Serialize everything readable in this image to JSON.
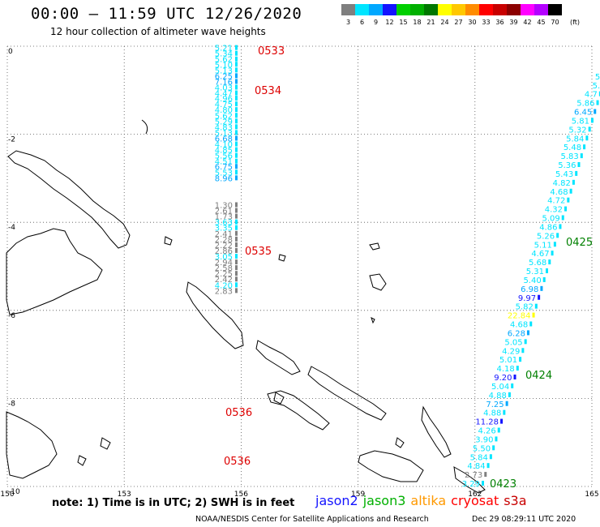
{
  "header": {
    "title": "00:00 – 11:59 UTC 12/26/2020",
    "subtitle": "12 hour collection of altimeter wave heights"
  },
  "color_scale": {
    "unit": "(ft)",
    "bins": [
      {
        "label": "3",
        "color": "#7f7f7f"
      },
      {
        "label": "6",
        "color": "#00e5ff"
      },
      {
        "label": "9",
        "color": "#00a8ff"
      },
      {
        "label": "12",
        "color": "#1414ff"
      },
      {
        "label": "15",
        "color": "#00d000"
      },
      {
        "label": "18",
        "color": "#00b000"
      },
      {
        "label": "21",
        "color": "#007800"
      },
      {
        "label": "24",
        "color": "#ffff00"
      },
      {
        "label": "27",
        "color": "#ffc800"
      },
      {
        "label": "30",
        "color": "#ff8c00"
      },
      {
        "label": "33",
        "color": "#ff0000"
      },
      {
        "label": "36",
        "color": "#c80000"
      },
      {
        "label": "39",
        "color": "#8c0000"
      },
      {
        "label": "42",
        "color": "#ff00ff"
      },
      {
        "label": "45",
        "color": "#b400ff"
      },
      {
        "label": "70",
        "color": "#000000"
      }
    ]
  },
  "map": {
    "lon_ticks": [
      "150",
      "153",
      "156",
      "159",
      "162",
      "165"
    ],
    "lat_ticks": [
      "0",
      "-2",
      "-4",
      "-6",
      "-8",
      "-10"
    ],
    "lon_range": [
      150,
      165
    ],
    "lat_range": [
      0,
      -10
    ]
  },
  "tracks": [
    {
      "satellite": "jason2",
      "points": [
        {
          "lon": 155.7,
          "lat": -0.03,
          "v": "5.21",
          "c": "#00e5ff"
        },
        {
          "lon": 155.7,
          "lat": -0.16,
          "v": "5.34",
          "c": "#00e5ff"
        },
        {
          "lon": 155.7,
          "lat": -0.29,
          "v": "5.62",
          "c": "#00e5ff"
        },
        {
          "lon": 155.7,
          "lat": -0.41,
          "v": "5.10",
          "c": "#00e5ff"
        },
        {
          "lon": 155.7,
          "lat": -0.54,
          "v": "5.13",
          "c": "#00e5ff"
        },
        {
          "lon": 155.7,
          "lat": -0.67,
          "v": "6.25",
          "c": "#00a8ff"
        },
        {
          "lon": 155.7,
          "lat": -0.8,
          "v": "7.16",
          "c": "#00a8ff"
        },
        {
          "lon": 155.7,
          "lat": -0.93,
          "v": "4.03",
          "c": "#00e5ff"
        },
        {
          "lon": 155.7,
          "lat": -1.06,
          "v": "4.47",
          "c": "#00e5ff"
        },
        {
          "lon": 155.7,
          "lat": -1.18,
          "v": "4.96",
          "c": "#00e5ff"
        },
        {
          "lon": 155.7,
          "lat": -1.31,
          "v": "4.75",
          "c": "#00e5ff"
        },
        {
          "lon": 155.7,
          "lat": -1.44,
          "v": "4.80",
          "c": "#00e5ff"
        },
        {
          "lon": 155.7,
          "lat": -1.57,
          "v": "5.62",
          "c": "#00e5ff"
        },
        {
          "lon": 155.7,
          "lat": -1.7,
          "v": "5.29",
          "c": "#00e5ff"
        },
        {
          "lon": 155.7,
          "lat": -1.83,
          "v": "4.83",
          "c": "#00e5ff"
        },
        {
          "lon": 155.7,
          "lat": -1.96,
          "v": "5.13",
          "c": "#00e5ff"
        },
        {
          "lon": 155.7,
          "lat": -2.09,
          "v": "6.68",
          "c": "#00a8ff"
        },
        {
          "lon": 155.7,
          "lat": -2.22,
          "v": "4.10",
          "c": "#00e5ff"
        },
        {
          "lon": 155.7,
          "lat": -2.35,
          "v": "4.85",
          "c": "#00e5ff"
        },
        {
          "lon": 155.7,
          "lat": -2.48,
          "v": "5.56",
          "c": "#00e5ff"
        },
        {
          "lon": 155.7,
          "lat": -2.61,
          "v": "4.51",
          "c": "#00e5ff"
        },
        {
          "lon": 155.7,
          "lat": -2.73,
          "v": "6.75",
          "c": "#00a8ff"
        },
        {
          "lon": 155.7,
          "lat": -2.86,
          "v": "5.53",
          "c": "#00e5ff"
        },
        {
          "lon": 155.7,
          "lat": -2.99,
          "v": "8.96",
          "c": "#00a8ff"
        }
      ]
    },
    {
      "satellite": "jason3",
      "points": [
        {
          "lon": 155.7,
          "lat": -3.6,
          "v": "1.30",
          "c": "#7f7f7f"
        },
        {
          "lon": 155.7,
          "lat": -3.73,
          "v": "2.61",
          "c": "#7f7f7f"
        },
        {
          "lon": 155.7,
          "lat": -3.86,
          "v": "1.73",
          "c": "#7f7f7f"
        },
        {
          "lon": 155.7,
          "lat": -3.99,
          "v": "3.63",
          "c": "#00e5ff"
        },
        {
          "lon": 155.7,
          "lat": -4.12,
          "v": "3.35",
          "c": "#00e5ff"
        },
        {
          "lon": 155.7,
          "lat": -4.25,
          "v": "2.41",
          "c": "#7f7f7f"
        },
        {
          "lon": 155.7,
          "lat": -4.38,
          "v": "2.28",
          "c": "#7f7f7f"
        },
        {
          "lon": 155.7,
          "lat": -4.51,
          "v": "2.22",
          "c": "#7f7f7f"
        },
        {
          "lon": 155.7,
          "lat": -4.64,
          "v": "2.86",
          "c": "#7f7f7f"
        },
        {
          "lon": 155.7,
          "lat": -4.77,
          "v": "3.05",
          "c": "#00e5ff"
        },
        {
          "lon": 155.7,
          "lat": -4.9,
          "v": "2.94",
          "c": "#7f7f7f"
        },
        {
          "lon": 155.7,
          "lat": -5.03,
          "v": "2.58",
          "c": "#7f7f7f"
        },
        {
          "lon": 155.7,
          "lat": -5.16,
          "v": "2.25",
          "c": "#7f7f7f"
        },
        {
          "lon": 155.7,
          "lat": -5.29,
          "v": "2.42",
          "c": "#7f7f7f"
        },
        {
          "lon": 155.7,
          "lat": -5.42,
          "v": "4.20",
          "c": "#00e5ff"
        },
        {
          "lon": 155.7,
          "lat": -5.55,
          "v": "2.83",
          "c": "#7f7f7f"
        }
      ]
    }
  ],
  "diag_track": [
    {
      "v": "5.",
      "c": "#00e5ff"
    },
    {
      "v": "6",
      "c": "#00a8ff"
    },
    {
      "v": "5.",
      "c": "#00e5ff"
    },
    {
      "v": "5.",
      "c": "#00e5ff"
    },
    {
      "v": "4.7",
      "c": "#00e5ff"
    },
    {
      "v": "5.86",
      "c": "#00e5ff"
    },
    {
      "v": "6.45",
      "c": "#00a8ff"
    },
    {
      "v": "5.81",
      "c": "#00e5ff"
    },
    {
      "v": "5.32",
      "c": "#00e5ff"
    },
    {
      "v": "5.84",
      "c": "#00e5ff"
    },
    {
      "v": "5.48",
      "c": "#00e5ff"
    },
    {
      "v": "5.83",
      "c": "#00e5ff"
    },
    {
      "v": "5.36",
      "c": "#00e5ff"
    },
    {
      "v": "5.43",
      "c": "#00e5ff"
    },
    {
      "v": "4.82",
      "c": "#00e5ff"
    },
    {
      "v": "4.68",
      "c": "#00e5ff"
    },
    {
      "v": "4.72",
      "c": "#00e5ff"
    },
    {
      "v": "4.32",
      "c": "#00e5ff"
    },
    {
      "v": "5.09",
      "c": "#00e5ff"
    },
    {
      "v": "4.86",
      "c": "#00e5ff"
    },
    {
      "v": "5.26",
      "c": "#00e5ff"
    },
    {
      "v": "5.11",
      "c": "#00e5ff"
    },
    {
      "v": "4.67",
      "c": "#00e5ff"
    },
    {
      "v": "5.68",
      "c": "#00e5ff"
    },
    {
      "v": "5.31",
      "c": "#00e5ff"
    },
    {
      "v": "5.40",
      "c": "#00e5ff"
    },
    {
      "v": "6.98",
      "c": "#00a8ff"
    },
    {
      "v": "9.97",
      "c": "#1414ff"
    },
    {
      "v": "5.82",
      "c": "#00e5ff"
    },
    {
      "v": "22.84",
      "c": "#ffff00"
    },
    {
      "v": "4.68",
      "c": "#00e5ff"
    },
    {
      "v": "6.28",
      "c": "#00a8ff"
    },
    {
      "v": "5.05",
      "c": "#00e5ff"
    },
    {
      "v": "4.29",
      "c": "#00e5ff"
    },
    {
      "v": "5.01",
      "c": "#00e5ff"
    },
    {
      "v": "4.18",
      "c": "#00e5ff"
    },
    {
      "v": "9.20",
      "c": "#1414ff"
    },
    {
      "v": "5.04",
      "c": "#00e5ff"
    },
    {
      "v": "4.88",
      "c": "#00e5ff"
    },
    {
      "v": "7.25",
      "c": "#00a8ff"
    },
    {
      "v": "4.88",
      "c": "#00e5ff"
    },
    {
      "v": "11.28",
      "c": "#1414ff"
    },
    {
      "v": "4.26",
      "c": "#00e5ff"
    },
    {
      "v": "3.90",
      "c": "#00e5ff"
    },
    {
      "v": "5.50",
      "c": "#00e5ff"
    },
    {
      "v": "5.84",
      "c": "#00e5ff"
    },
    {
      "v": "4.84",
      "c": "#00e5ff"
    },
    {
      "v": "2.73",
      "c": "#7f7f7f"
    },
    {
      "v": "3.29",
      "c": "#00e5ff"
    }
  ],
  "time_labels": [
    {
      "text": "0533",
      "color": "#dd0000"
    },
    {
      "text": "0534",
      "color": "#dd0000"
    },
    {
      "text": "0535",
      "color": "#dd0000"
    },
    {
      "text": "0536",
      "color": "#dd0000"
    },
    {
      "text": "0536",
      "color": "#dd0000"
    },
    {
      "text": "0425",
      "color": "#008000"
    },
    {
      "text": "0424",
      "color": "#008000"
    },
    {
      "text": "0423",
      "color": "#008000"
    }
  ],
  "footer": {
    "note": "note:  1) Time is in UTC;  2) SWH is in feet",
    "satellites": [
      {
        "name": "jason2",
        "color": "#1414ff"
      },
      {
        "name": "jason3",
        "color": "#00b000"
      },
      {
        "name": "altika",
        "color": "#ff9900"
      },
      {
        "name": "cryosat",
        "color": "#ff0000"
      },
      {
        "name": "s3a",
        "color": "#c80000"
      }
    ],
    "credit": "NOAA/NESDIS Center for Satellite Applications and Research",
    "timestamp": "Dec 29 08:29:11 UTC 2020"
  }
}
